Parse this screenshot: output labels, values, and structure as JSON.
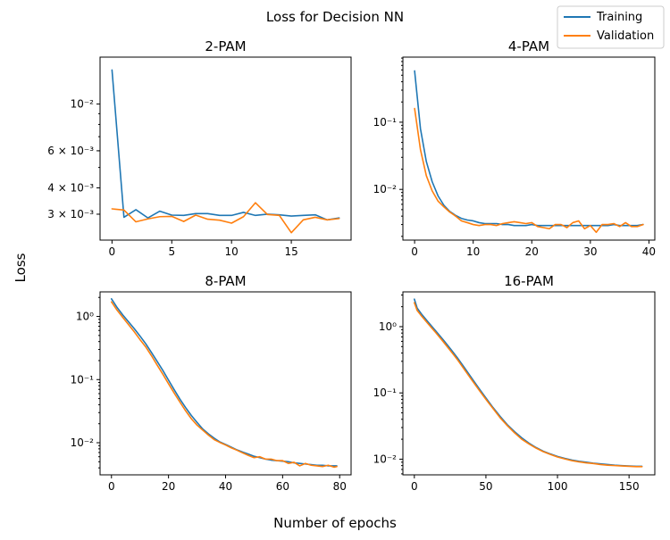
{
  "figure": {
    "suptitle": "Loss for Decision NN",
    "xlabel": "Number of epochs",
    "ylabel": "Loss"
  },
  "legend": [
    {
      "name": "Training",
      "color": "#1f77b4"
    },
    {
      "name": "Validation",
      "color": "#ff7f0e"
    }
  ],
  "chart_data": [
    {
      "type": "line",
      "title": "2-PAM",
      "yscale": "log",
      "xlim": [
        -1,
        20
      ],
      "ylim": [
        0.00226,
        0.0167
      ],
      "xticks": [
        0,
        5,
        10,
        15
      ],
      "xtick_labels": [
        "0",
        "5",
        "10",
        "15"
      ],
      "yticks": [
        0.003,
        0.004,
        0.006,
        0.01
      ],
      "ytick_labels": [
        "3 × 10⁻³",
        "4 × 10⁻³",
        "6 × 10⁻³",
        "10⁻²"
      ],
      "x": [
        0,
        1,
        2,
        3,
        4,
        5,
        6,
        7,
        8,
        9,
        10,
        11,
        12,
        13,
        14,
        15,
        16,
        17,
        18,
        19
      ],
      "series": [
        {
          "name": "Training",
          "values": [
            0.0145,
            0.0029,
            0.00315,
            0.00288,
            0.0031,
            0.00297,
            0.00296,
            0.00302,
            0.00302,
            0.00296,
            0.00296,
            0.00306,
            0.00296,
            0.003,
            0.00298,
            0.00294,
            0.00296,
            0.00298,
            0.00282,
            0.00288
          ]
        },
        {
          "name": "Validation",
          "values": [
            0.00318,
            0.00314,
            0.00276,
            0.00285,
            0.00292,
            0.00293,
            0.00277,
            0.00297,
            0.00284,
            0.00281,
            0.00272,
            0.00292,
            0.0034,
            0.00299,
            0.00296,
            0.00245,
            0.00282,
            0.0029,
            0.00282,
            0.00286
          ]
        }
      ]
    },
    {
      "type": "line",
      "title": "4-PAM",
      "yscale": "log",
      "xlim": [
        -2,
        41
      ],
      "ylim": [
        0.00176,
        0.93
      ],
      "xticks": [
        0,
        10,
        20,
        30,
        40
      ],
      "xtick_labels": [
        "0",
        "10",
        "20",
        "30",
        "40"
      ],
      "yticks": [
        0.01,
        0.1
      ],
      "ytick_labels": [
        "10⁻²",
        "10⁻¹"
      ],
      "x": [
        0,
        1,
        2,
        3,
        4,
        5,
        6,
        7,
        8,
        9,
        10,
        11,
        12,
        13,
        14,
        15,
        16,
        17,
        18,
        19,
        20,
        21,
        22,
        23,
        24,
        25,
        26,
        27,
        28,
        29,
        30,
        31,
        32,
        33,
        34,
        35,
        36,
        37,
        38,
        39
      ],
      "series": [
        {
          "name": "Training",
          "values": [
            0.58,
            0.08,
            0.026,
            0.013,
            0.008,
            0.0058,
            0.0047,
            0.0041,
            0.0037,
            0.0035,
            0.0034,
            0.0032,
            0.0031,
            0.0031,
            0.0031,
            0.003,
            0.003,
            0.0029,
            0.0029,
            0.0029,
            0.003,
            0.0029,
            0.0029,
            0.0029,
            0.0029,
            0.0029,
            0.0029,
            0.0029,
            0.0029,
            0.0029,
            0.0029,
            0.0029,
            0.0029,
            0.0029,
            0.003,
            0.0029,
            0.0029,
            0.0029,
            0.0029,
            0.003
          ]
        },
        {
          "name": "Validation",
          "values": [
            0.16,
            0.039,
            0.016,
            0.0095,
            0.0067,
            0.0055,
            0.0046,
            0.004,
            0.0034,
            0.0032,
            0.003,
            0.0029,
            0.003,
            0.003,
            0.0029,
            0.0031,
            0.0032,
            0.0033,
            0.0032,
            0.0031,
            0.0032,
            0.0028,
            0.0027,
            0.0026,
            0.003,
            0.003,
            0.0027,
            0.0032,
            0.0034,
            0.0026,
            0.0029,
            0.0023,
            0.003,
            0.003,
            0.0031,
            0.0028,
            0.0032,
            0.0028,
            0.0028,
            0.003
          ]
        }
      ]
    },
    {
      "type": "line",
      "title": "8-PAM",
      "yscale": "log",
      "xlim": [
        -4,
        84
      ],
      "ylim": [
        0.0031,
        2.45
      ],
      "xticks": [
        0,
        20,
        40,
        60,
        80
      ],
      "xtick_labels": [
        "0",
        "20",
        "40",
        "60",
        "80"
      ],
      "yticks": [
        0.01,
        0.1,
        1
      ],
      "ytick_labels": [
        "10⁻²",
        "10⁻¹",
        "10⁰"
      ],
      "x": [
        0,
        2,
        4,
        6,
        8,
        10,
        12,
        14,
        16,
        18,
        20,
        22,
        24,
        26,
        28,
        30,
        32,
        34,
        36,
        38,
        40,
        42,
        44,
        46,
        48,
        50,
        52,
        54,
        56,
        58,
        60,
        62,
        64,
        66,
        68,
        70,
        72,
        74,
        76,
        78,
        79
      ],
      "series": [
        {
          "name": "Training",
          "values": [
            1.9,
            1.38,
            1.05,
            0.82,
            0.64,
            0.49,
            0.37,
            0.27,
            0.195,
            0.14,
            0.098,
            0.069,
            0.049,
            0.036,
            0.027,
            0.021,
            0.0165,
            0.0138,
            0.0118,
            0.0103,
            0.0094,
            0.0085,
            0.0077,
            0.0071,
            0.0066,
            0.0061,
            0.0058,
            0.0055,
            0.0053,
            0.0052,
            0.0051,
            0.005,
            0.0048,
            0.0047,
            0.0046,
            0.0045,
            0.0044,
            0.0044,
            0.0043,
            0.0043,
            0.0043
          ]
        },
        {
          "name": "Validation",
          "values": [
            1.7,
            1.25,
            0.96,
            0.74,
            0.57,
            0.43,
            0.33,
            0.24,
            0.17,
            0.122,
            0.086,
            0.061,
            0.044,
            0.032,
            0.024,
            0.019,
            0.0158,
            0.0132,
            0.0112,
            0.0101,
            0.0092,
            0.0083,
            0.0076,
            0.0069,
            0.0063,
            0.0058,
            0.006,
            0.0055,
            0.0055,
            0.0052,
            0.0052,
            0.0047,
            0.0049,
            0.0043,
            0.0047,
            0.0044,
            0.0043,
            0.0042,
            0.0044,
            0.0041,
            0.0042
          ]
        }
      ]
    },
    {
      "type": "line",
      "title": "16-PAM",
      "yscale": "log",
      "xlim": [
        -8,
        168
      ],
      "ylim": [
        0.0058,
        3.35
      ],
      "xticks": [
        0,
        50,
        100,
        150
      ],
      "xtick_labels": [
        "0",
        "50",
        "100",
        "150"
      ],
      "yticks": [
        0.01,
        0.1,
        1
      ],
      "ytick_labels": [
        "10⁻²",
        "10⁻¹",
        "10⁰"
      ],
      "x": [
        0,
        2,
        5,
        10,
        15,
        20,
        25,
        30,
        35,
        40,
        45,
        50,
        55,
        60,
        65,
        70,
        75,
        80,
        85,
        90,
        95,
        100,
        105,
        110,
        115,
        120,
        125,
        130,
        135,
        140,
        145,
        150,
        155,
        159
      ],
      "series": [
        {
          "name": "Training",
          "values": [
            2.6,
            1.9,
            1.55,
            1.15,
            0.86,
            0.64,
            0.47,
            0.34,
            0.24,
            0.168,
            0.118,
            0.084,
            0.06,
            0.044,
            0.033,
            0.026,
            0.021,
            0.0175,
            0.015,
            0.0132,
            0.012,
            0.011,
            0.0103,
            0.0097,
            0.0093,
            0.009,
            0.0087,
            0.0085,
            0.0083,
            0.0081,
            0.008,
            0.0079,
            0.0078,
            0.0078
          ]
        },
        {
          "name": "Validation",
          "values": [
            2.3,
            1.75,
            1.45,
            1.08,
            0.81,
            0.6,
            0.44,
            0.32,
            0.225,
            0.158,
            0.112,
            0.08,
            0.058,
            0.042,
            0.032,
            0.025,
            0.02,
            0.017,
            0.0147,
            0.013,
            0.0118,
            0.0108,
            0.0101,
            0.0095,
            0.0091,
            0.0088,
            0.0086,
            0.0083,
            0.0081,
            0.008,
            0.0079,
            0.0078,
            0.0077,
            0.0077
          ]
        }
      ]
    }
  ]
}
